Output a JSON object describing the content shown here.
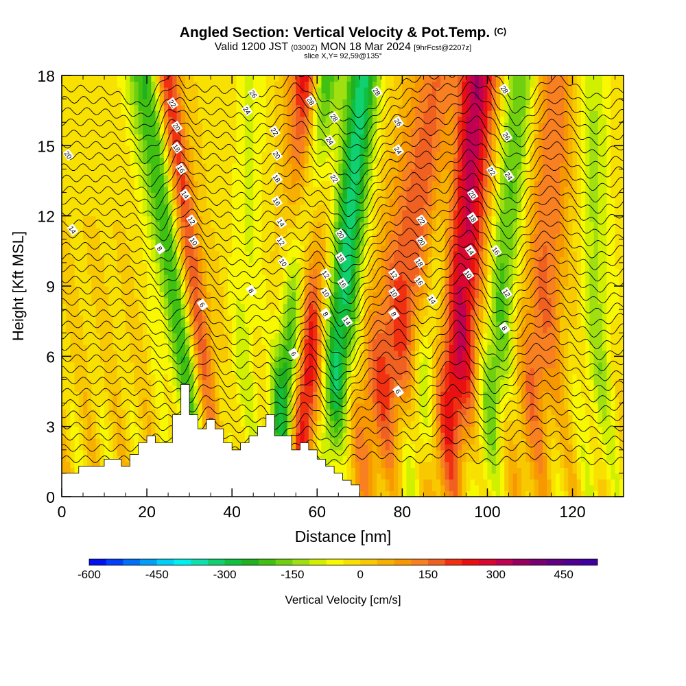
{
  "header": {
    "title": "Angled Section: Vertical Velocity & Pot.Temp.",
    "title_mark": "(C)",
    "valid_prefix": "Valid 1200 JST",
    "valid_utc": "(0300Z)",
    "valid_date": "MON 18 Mar 2024",
    "forecast": "[9hrFcst@2207z]",
    "slice": "slice X,Y= 92,59@135°"
  },
  "chart_data": {
    "type": "heatmap",
    "xlabel": "Distance [nm]",
    "ylabel": "Height [Kft MSL]",
    "xlim": [
      0,
      132
    ],
    "ylim": [
      0,
      18
    ],
    "x_ticks": [
      0,
      20,
      40,
      60,
      80,
      100,
      120
    ],
    "y_ticks": [
      0,
      3,
      6,
      9,
      12,
      15,
      18
    ],
    "colorbar": {
      "label": "Vertical Velocity [cm/s]",
      "ticks": [
        -600,
        -450,
        -300,
        -150,
        0,
        150,
        300,
        450
      ],
      "tick_labels": [
        "-600",
        "-450",
        "-300",
        "-150",
        "0",
        "150",
        "300",
        "450"
      ],
      "min": -600,
      "max": 525,
      "step": 37.5,
      "colors": [
        "#0010f0",
        "#0040f8",
        "#0070f8",
        "#00a0f8",
        "#00d0f8",
        "#00f0f0",
        "#10e0b0",
        "#10d070",
        "#10c040",
        "#20b020",
        "#40c010",
        "#70d010",
        "#a0e010",
        "#d0f000",
        "#f8f800",
        "#f8e000",
        "#f8c800",
        "#f8b000",
        "#f89800",
        "#f88020",
        "#f06020",
        "#f03010",
        "#e81010",
        "#d80830",
        "#c00050",
        "#980060",
        "#780070",
        "#600080",
        "#500090",
        "#4000a0"
      ]
    },
    "terrain_profile": {
      "x": [
        0,
        4,
        4,
        10,
        10,
        14,
        14,
        16,
        16,
        18,
        18,
        20,
        20,
        22,
        22,
        26,
        26,
        28,
        28,
        30,
        30,
        32,
        32,
        34,
        34,
        36,
        36,
        38,
        38,
        40,
        40,
        42,
        42,
        44,
        44,
        46,
        46,
        48,
        48,
        50,
        50,
        54,
        54,
        56,
        56,
        58,
        58,
        60,
        60,
        62,
        62,
        64,
        64,
        66,
        66,
        68,
        68,
        70
      ],
      "y": [
        1.0,
        1.0,
        1.3,
        1.3,
        1.6,
        1.6,
        1.3,
        1.3,
        1.8,
        1.8,
        2.3,
        2.3,
        2.6,
        2.6,
        2.3,
        2.3,
        3.5,
        3.5,
        4.8,
        4.8,
        3.5,
        3.5,
        2.9,
        2.9,
        3.3,
        3.3,
        2.9,
        2.9,
        2.3,
        2.3,
        2.0,
        2.0,
        2.3,
        2.3,
        2.6,
        2.6,
        3.0,
        3.0,
        3.5,
        3.5,
        2.6,
        2.6,
        2.0,
        2.0,
        2.3,
        2.3,
        2.0,
        2.0,
        1.6,
        1.6,
        1.3,
        1.3,
        1.0,
        1.0,
        0.7,
        0.7,
        0.5,
        0.5
      ]
    },
    "velocity_bands": [
      {
        "center": 30,
        "value": -250,
        "width": 5,
        "tilt": -0.7
      },
      {
        "center": 33,
        "value": 320,
        "width": 3,
        "tilt": -0.6
      },
      {
        "center": 43,
        "value": -80,
        "width": 4,
        "tilt": 0.1
      },
      {
        "center": 54,
        "value": -420,
        "width": 3.5,
        "tilt": 0.5
      },
      {
        "center": 57,
        "value": 400,
        "width": 4,
        "tilt": 0.1
      },
      {
        "center": 65,
        "value": -320,
        "width": 4,
        "tilt": 0.4
      },
      {
        "center": 78,
        "value": 200,
        "width": 8,
        "tilt": 0.9
      },
      {
        "center": 86,
        "value": -180,
        "width": 4,
        "tilt": 0.5
      },
      {
        "center": 93,
        "value": 300,
        "width": 5,
        "tilt": 0.3
      },
      {
        "center": 102,
        "value": -200,
        "width": 4,
        "tilt": 0.4
      },
      {
        "center": 112,
        "value": 150,
        "width": 5,
        "tilt": 0.3
      },
      {
        "center": 126,
        "value": -120,
        "width": 4,
        "tilt": -0.1
      }
    ],
    "isentrope_labels": [
      {
        "text": "26",
        "x": 45,
        "y": 17.2
      },
      {
        "text": "24",
        "x": 43.5,
        "y": 16.5
      },
      {
        "text": "22",
        "x": 26,
        "y": 16.8
      },
      {
        "text": "20",
        "x": 27,
        "y": 15.8
      },
      {
        "text": "18",
        "x": 27,
        "y": 14.9
      },
      {
        "text": "16",
        "x": 28,
        "y": 14.0
      },
      {
        "text": "14",
        "x": 29,
        "y": 12.9
      },
      {
        "text": "12",
        "x": 30.5,
        "y": 11.8
      },
      {
        "text": "10",
        "x": 31,
        "y": 10.9
      },
      {
        "text": "8",
        "x": 23,
        "y": 10.6
      },
      {
        "text": "6",
        "x": 33,
        "y": 8.2
      },
      {
        "text": "20",
        "x": 1.5,
        "y": 14.6
      },
      {
        "text": "14",
        "x": 2.5,
        "y": 11.4
      },
      {
        "text": "22",
        "x": 50,
        "y": 15.6
      },
      {
        "text": "20",
        "x": 50.5,
        "y": 14.6
      },
      {
        "text": "18",
        "x": 50.5,
        "y": 13.6
      },
      {
        "text": "16",
        "x": 50.5,
        "y": 12.6
      },
      {
        "text": "14",
        "x": 51.5,
        "y": 11.7
      },
      {
        "text": "12",
        "x": 51.5,
        "y": 10.9
      },
      {
        "text": "10",
        "x": 52,
        "y": 10.0
      },
      {
        "text": "8",
        "x": 44.5,
        "y": 8.8
      },
      {
        "text": "6",
        "x": 54.5,
        "y": 6.1
      },
      {
        "text": "28",
        "x": 58.5,
        "y": 16.9
      },
      {
        "text": "28",
        "x": 64,
        "y": 16.2
      },
      {
        "text": "24",
        "x": 63,
        "y": 15.2
      },
      {
        "text": "22",
        "x": 64,
        "y": 13.6
      },
      {
        "text": "20",
        "x": 65.5,
        "y": 11.2
      },
      {
        "text": "18",
        "x": 65.5,
        "y": 10.2
      },
      {
        "text": "16",
        "x": 66,
        "y": 9.1
      },
      {
        "text": "14",
        "x": 67,
        "y": 7.5
      },
      {
        "text": "12",
        "x": 62,
        "y": 9.5
      },
      {
        "text": "10",
        "x": 62,
        "y": 8.7
      },
      {
        "text": "8",
        "x": 62,
        "y": 7.8
      },
      {
        "text": "28",
        "x": 74,
        "y": 17.3
      },
      {
        "text": "26",
        "x": 79,
        "y": 16.0
      },
      {
        "text": "24",
        "x": 79,
        "y": 14.8
      },
      {
        "text": "22",
        "x": 84.5,
        "y": 11.8
      },
      {
        "text": "20",
        "x": 84.5,
        "y": 10.9
      },
      {
        "text": "18",
        "x": 84,
        "y": 10.0
      },
      {
        "text": "16",
        "x": 84,
        "y": 9.2
      },
      {
        "text": "14",
        "x": 87,
        "y": 8.4
      },
      {
        "text": "12",
        "x": 78,
        "y": 9.5
      },
      {
        "text": "10",
        "x": 78,
        "y": 8.7
      },
      {
        "text": "8",
        "x": 78,
        "y": 7.8
      },
      {
        "text": "6",
        "x": 79,
        "y": 4.5
      },
      {
        "text": "28",
        "x": 104,
        "y": 17.4
      },
      {
        "text": "26",
        "x": 104.5,
        "y": 15.4
      },
      {
        "text": "24",
        "x": 105,
        "y": 13.7
      },
      {
        "text": "22",
        "x": 101,
        "y": 13.9
      },
      {
        "text": "20",
        "x": 96.5,
        "y": 12.9
      },
      {
        "text": "18",
        "x": 96.5,
        "y": 11.9
      },
      {
        "text": "16",
        "x": 102,
        "y": 10.5
      },
      {
        "text": "14",
        "x": 96,
        "y": 10.5
      },
      {
        "text": "12",
        "x": 104.5,
        "y": 8.7
      },
      {
        "text": "10",
        "x": 95.5,
        "y": 9.5
      },
      {
        "text": "8",
        "x": 104,
        "y": 7.2
      }
    ]
  }
}
